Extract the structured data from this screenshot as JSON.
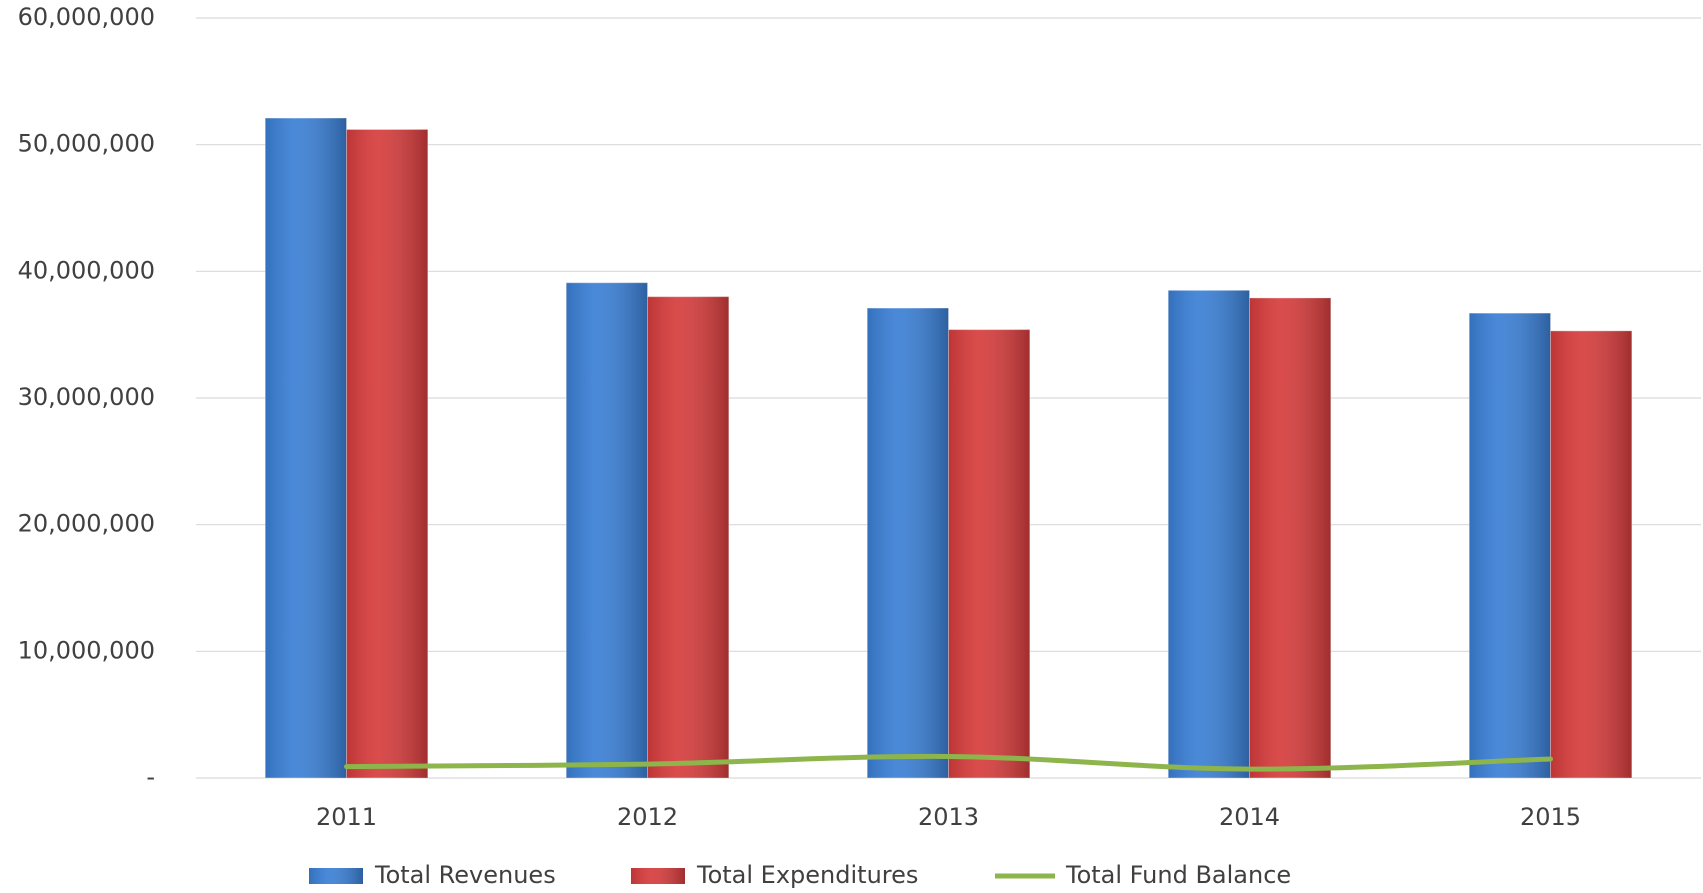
{
  "chart_data": {
    "type": "bar",
    "categories": [
      "2011",
      "2012",
      "2013",
      "2014",
      "2015"
    ],
    "series": [
      {
        "name": "Total Revenues",
        "color": "#3a7fd5",
        "type": "bar",
        "values": [
          52100000,
          39100000,
          37100000,
          38500000,
          36700000
        ]
      },
      {
        "name": "Total Expenditures",
        "color": "#d63c3c",
        "type": "bar",
        "values": [
          51200000,
          38000000,
          35400000,
          37900000,
          35300000
        ]
      },
      {
        "name": "Total Fund Balance",
        "color": "#8db54b",
        "type": "line",
        "values": [
          900000,
          1100000,
          1700000,
          700000,
          1500000
        ]
      }
    ],
    "ylim": [
      0,
      60000000
    ],
    "yticks": [
      {
        "value": 0,
        "label": "-"
      },
      {
        "value": 10000000,
        "label": "10,000,000"
      },
      {
        "value": 20000000,
        "label": "20,000,000"
      },
      {
        "value": 30000000,
        "label": "30,000,000"
      },
      {
        "value": 40000000,
        "label": "40,000,000"
      },
      {
        "value": 50000000,
        "label": "50,000,000"
      },
      {
        "value": 60000000,
        "label": "60,000,000"
      }
    ],
    "grid": true,
    "legend": "bottom"
  }
}
